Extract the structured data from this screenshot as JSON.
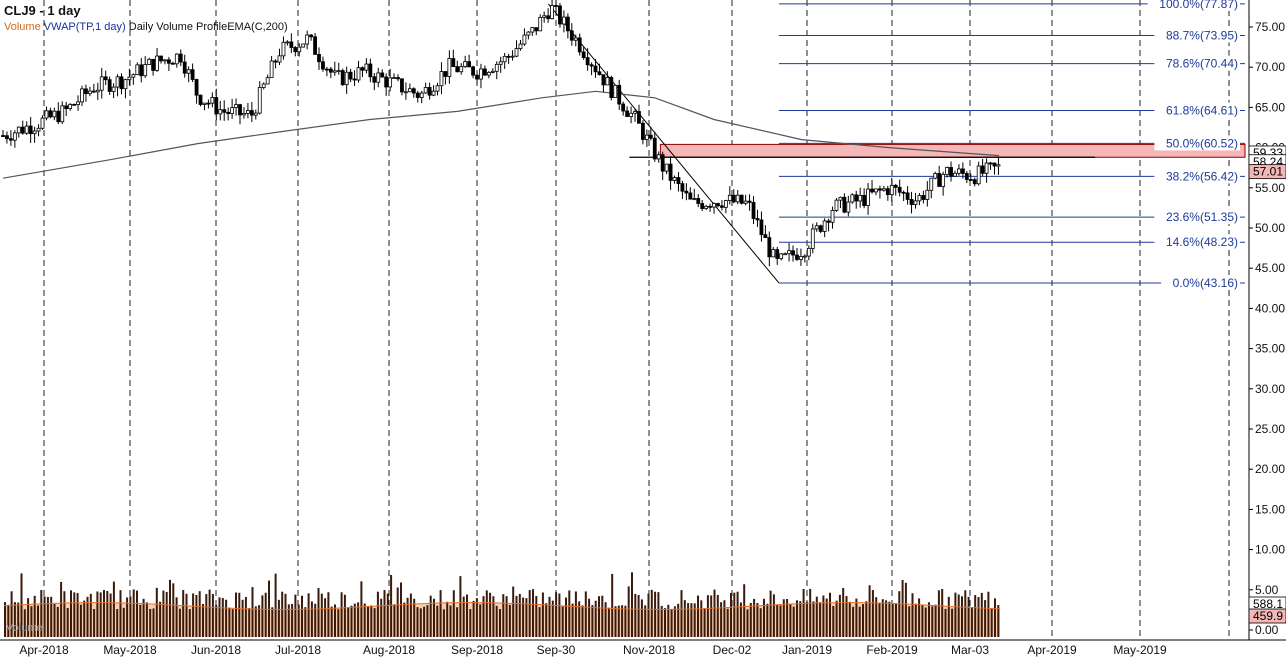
{
  "header": {
    "title": "CLJ9 - 1 day",
    "studies": [
      "Volume",
      "VWAP(TP,1 day)",
      "Daily Volume Profile",
      "EMA(C,200)"
    ],
    "volume_pane_label": "Volume"
  },
  "colors": {
    "candle": "#000000",
    "ema": "#555555",
    "fib_line": "#1f3a9a",
    "zone_fill": "#f4b6b6",
    "zone_border": "#8b0000",
    "volume_bar": "#3a1a0a",
    "volume_ma": "#f8cfb0",
    "volume_ma_line": "#e07030",
    "grid": "#222222"
  },
  "chart_data": {
    "type": "candlestick",
    "symbol": "CLJ9",
    "interval": "1 day",
    "x_ticks": [
      "Apr-2018",
      "May-2018",
      "Jun-2018",
      "Jul-2018",
      "Aug-2018",
      "Sep-2018",
      "Sep-30",
      "Nov-2018",
      "Dec-02",
      "Jan-2019",
      "Feb-2019",
      "Mar-03",
      "Apr-2019",
      "May-2019"
    ],
    "y_ticks": [
      "75.00",
      "70.00",
      "65.00",
      "60.00",
      "55.00",
      "50.00",
      "45.00",
      "40.00",
      "35.00",
      "30.00",
      "25.00",
      "20.00",
      "15.00",
      "10.00",
      "5.00",
      "0.00"
    ],
    "ylim": [
      0,
      80
    ],
    "price_path": [
      {
        "date": "2018-03-24",
        "close": 61.5
      },
      {
        "date": "2018-04-05",
        "close": 63.0
      },
      {
        "date": "2018-04-15",
        "close": 64.5
      },
      {
        "date": "2018-04-25",
        "close": 67.5
      },
      {
        "date": "2018-05-06",
        "close": 68.5
      },
      {
        "date": "2018-05-16",
        "close": 70.5
      },
      {
        "date": "2018-05-26",
        "close": 71.5
      },
      {
        "date": "2018-06-01",
        "close": 66.5
      },
      {
        "date": "2018-06-10",
        "close": 64.5
      },
      {
        "date": "2018-06-20",
        "close": 64.0
      },
      {
        "date": "2018-06-30",
        "close": 72.0
      },
      {
        "date": "2018-07-10",
        "close": 73.5
      },
      {
        "date": "2018-07-20",
        "close": 68.5
      },
      {
        "date": "2018-07-30",
        "close": 69.5
      },
      {
        "date": "2018-08-09",
        "close": 68.0
      },
      {
        "date": "2018-08-19",
        "close": 66.5
      },
      {
        "date": "2018-08-29",
        "close": 70.0
      },
      {
        "date": "2018-09-08",
        "close": 69.5
      },
      {
        "date": "2018-09-18",
        "close": 71.0
      },
      {
        "date": "2018-09-28",
        "close": 74.5
      },
      {
        "date": "2018-10-04",
        "close": 77.5
      },
      {
        "date": "2018-10-14",
        "close": 73.0
      },
      {
        "date": "2018-10-24",
        "close": 68.0
      },
      {
        "date": "2018-11-03",
        "close": 63.5
      },
      {
        "date": "2018-11-13",
        "close": 57.5
      },
      {
        "date": "2018-11-23",
        "close": 53.0
      },
      {
        "date": "2018-12-03",
        "close": 53.5
      },
      {
        "date": "2018-12-13",
        "close": 53.0
      },
      {
        "date": "2018-12-23",
        "close": 45.5
      },
      {
        "date": "2019-01-02",
        "close": 47.5
      },
      {
        "date": "2019-01-12",
        "close": 52.5
      },
      {
        "date": "2019-01-22",
        "close": 53.5
      },
      {
        "date": "2019-02-01",
        "close": 55.0
      },
      {
        "date": "2019-02-11",
        "close": 53.5
      },
      {
        "date": "2019-02-21",
        "close": 57.0
      },
      {
        "date": "2019-03-03",
        "close": 56.5
      },
      {
        "date": "2019-03-12",
        "close": 57.5
      }
    ],
    "ema200": {
      "name": "EMA(C,200)",
      "points": [
        {
          "date": "2018-03-24",
          "value": 56.2
        },
        {
          "date": "2018-05-01",
          "value": 58.5
        },
        {
          "date": "2018-06-01",
          "value": 60.5
        },
        {
          "date": "2018-07-01",
          "value": 62.0
        },
        {
          "date": "2018-08-01",
          "value": 63.5
        },
        {
          "date": "2018-09-01",
          "value": 64.5
        },
        {
          "date": "2018-10-01",
          "value": 66.2
        },
        {
          "date": "2018-10-20",
          "value": 67.0
        },
        {
          "date": "2018-11-10",
          "value": 66.2
        },
        {
          "date": "2018-12-01",
          "value": 63.5
        },
        {
          "date": "2019-01-01",
          "value": 61.0
        },
        {
          "date": "2019-02-01",
          "value": 60.0
        },
        {
          "date": "2019-03-12",
          "value": 59.0
        }
      ]
    },
    "fibonacci": {
      "swing_high": {
        "date": "2018-10-04",
        "price": 77.87
      },
      "swing_low": {
        "date": "2018-12-24",
        "price": 43.16
      },
      "levels": [
        {
          "label": "100.0%(77.87)",
          "price": 77.87
        },
        {
          "label": "88.7%(73.95)",
          "price": 73.95
        },
        {
          "label": "78.6%(70.44)",
          "price": 70.44
        },
        {
          "label": "61.8%(64.61)",
          "price": 64.61
        },
        {
          "label": "50.0%(60.52)",
          "price": 60.52
        },
        {
          "label": "38.2%(56.42)",
          "price": 56.42
        },
        {
          "label": "23.6%(51.35)",
          "price": 51.35
        },
        {
          "label": "14.6%(48.23)",
          "price": 48.23
        },
        {
          "label": "0.0%(43.16)",
          "price": 43.16
        }
      ]
    },
    "resistance_zone": {
      "from": 58.8,
      "to": 60.4,
      "start_date": "2018-11-12"
    },
    "support_line": {
      "price": 58.8,
      "start_date": "2018-11-01",
      "end_date": "2019-04-15"
    },
    "price_markers": [
      {
        "label": "59.33",
        "price": 59.33,
        "style": "outlined"
      },
      {
        "label": "58.24",
        "price": 58.24,
        "style": "outlined"
      },
      {
        "label": "57.01",
        "price": 57.01,
        "style": "filled"
      }
    ],
    "volume": {
      "ma_level_fraction": 0.78,
      "markers": [
        {
          "label": "588.1",
          "style": "outlined"
        },
        {
          "label": "459.9",
          "style": "filled"
        }
      ]
    }
  }
}
